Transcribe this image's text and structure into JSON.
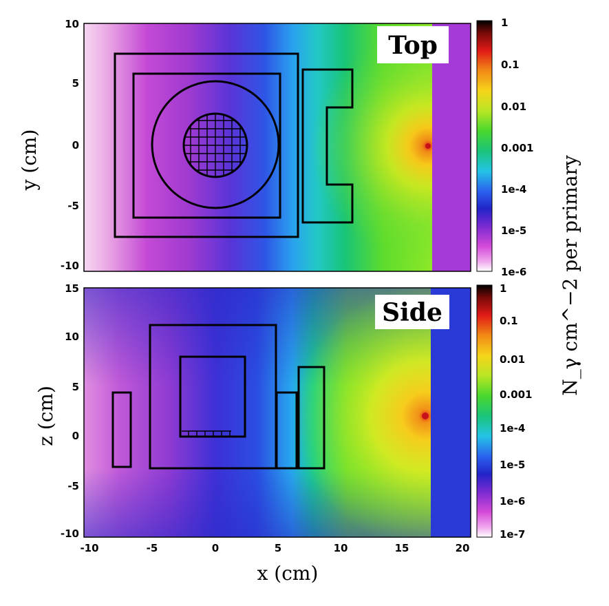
{
  "chart_data": [
    {
      "type": "heatmap",
      "panel": "top",
      "title": "Top",
      "xlabel": "x (cm)",
      "ylabel": "y (cm)",
      "xlim": [
        -10,
        20
      ],
      "ylim": [
        -10,
        10
      ],
      "xticks": [
        "-10",
        "-5",
        "0",
        "5",
        "10",
        "15",
        "20"
      ],
      "yticks": [
        "10",
        "5",
        "0",
        "-5",
        "-10"
      ],
      "colorbar": {
        "label": "N_γ cm^−2 per primary",
        "scale": "log",
        "range": [
          1e-06,
          1
        ],
        "ticks": [
          "1",
          "0.1",
          "0.01",
          "0.001",
          "1e-4",
          "1e-5",
          "1e-6"
        ]
      },
      "source": {
        "x": 17,
        "y": 0,
        "peak_value": 1
      },
      "outlines": [
        {
          "name": "outer-housing",
          "x": [
            -8,
            6.5
          ],
          "y": [
            -7.5,
            7.5
          ]
        },
        {
          "name": "inner-housing",
          "x": [
            -6.5,
            5.3
          ],
          "y": [
            -5.8,
            5.8
          ]
        },
        {
          "name": "circle",
          "cx": 0,
          "cy": 0,
          "r": 5.1
        },
        {
          "name": "grid-disc",
          "cx": 0,
          "cy": 0,
          "r": 2.5
        }
      ]
    },
    {
      "type": "heatmap",
      "panel": "side",
      "title": "Side",
      "xlabel": "x (cm)",
      "ylabel": "z (cm)",
      "xlim": [
        -10,
        20
      ],
      "ylim": [
        -10,
        15
      ],
      "xticks": [
        "-10",
        "-5",
        "0",
        "5",
        "10",
        "15",
        "20"
      ],
      "yticks": [
        "15",
        "10",
        "5",
        "0",
        "-5",
        "-10"
      ],
      "colorbar": {
        "label": "N_γ cm^−2 per primary",
        "scale": "log",
        "range": [
          1e-07,
          1
        ],
        "ticks": [
          "1",
          "0.1",
          "0.01",
          "0.001",
          "1e-4",
          "1e-5",
          "1e-6",
          "1e-7"
        ]
      },
      "source": {
        "x": 17,
        "z": 2,
        "peak_value": 1
      },
      "outlines": [
        {
          "name": "left-block",
          "x": [
            -8.2,
            -6.8
          ],
          "z": [
            -3.2,
            4.5
          ]
        },
        {
          "name": "outer-housing",
          "x": [
            -5.2,
            5
          ],
          "z": [
            -3.3,
            11
          ]
        },
        {
          "name": "inner-box",
          "x": [
            -2.7,
            2.4
          ],
          "z": [
            0,
            8
          ]
        },
        {
          "name": "narrow-block",
          "x": [
            5,
            6.5
          ],
          "z": [
            -3.3,
            4.5
          ]
        },
        {
          "name": "right-block",
          "x": [
            6.7,
            8.7
          ],
          "z": [
            -3.3,
            7
          ]
        }
      ]
    }
  ],
  "labels": {
    "top_tag": "Top",
    "side_tag": "Side",
    "xlabel": "x (cm)",
    "ylabel_top": "y (cm)",
    "ylabel_side": "z (cm)",
    "cbar_label": "N_γ cm^−2 per primary"
  }
}
